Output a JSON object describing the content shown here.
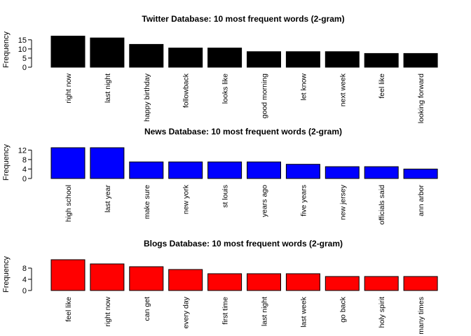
{
  "chart_data": [
    {
      "type": "bar",
      "title": "Twitter Database: 10 most frequent words (2-gram)",
      "ylabel": "Frequency",
      "ylim": [
        0,
        18
      ],
      "yticks": [
        0,
        5,
        10,
        15
      ],
      "color": "#000000",
      "grid": false,
      "categories": [
        "right now",
        "last night",
        "happy birthday",
        "followback",
        "looks like",
        "good morning",
        "let know",
        "next week",
        "feel like",
        "looking forward"
      ],
      "values": [
        17,
        16,
        12.5,
        10.5,
        10.5,
        8.5,
        8.5,
        8.5,
        7.5,
        7.5
      ]
    },
    {
      "type": "bar",
      "title": "News Database: 10 most frequent words (2-gram)",
      "ylabel": "Frequency",
      "ylim": [
        0,
        13
      ],
      "yticks": [
        0,
        4,
        8,
        12
      ],
      "color": "#0000ff",
      "grid": false,
      "categories": [
        "high school",
        "last year",
        "make sure",
        "new york",
        "st louis",
        "years ago",
        "five years",
        "new jersey",
        "officials said",
        "ann arbor"
      ],
      "values": [
        13,
        13,
        7,
        7,
        7,
        7,
        6,
        5,
        5,
        4
      ]
    },
    {
      "type": "bar",
      "title": "Blogs Database: 10 most frequent words (2-gram)",
      "ylabel": "Frequency",
      "ylim": [
        0,
        11
      ],
      "yticks": [
        0,
        4,
        8
      ],
      "color": "#ff0000",
      "grid": false,
      "categories": [
        "feel like",
        "right now",
        "can get",
        "every day",
        "first time",
        "last night",
        "last week",
        "go back",
        "holy spirit",
        "many times"
      ],
      "values": [
        11,
        9.5,
        8.5,
        7.5,
        6,
        6,
        6,
        5,
        5,
        5
      ]
    }
  ]
}
